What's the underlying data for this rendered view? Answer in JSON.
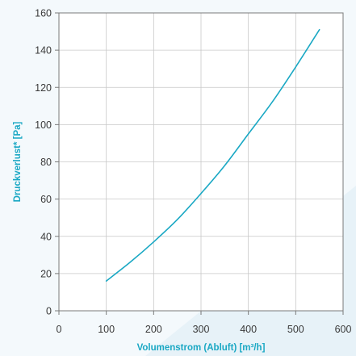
{
  "chart_data": {
    "type": "line",
    "title": "",
    "xlabel": "Volumenstrom (Abluft) [m³/h]",
    "ylabel": "Druckverlust* [Pa]",
    "xlim": [
      0,
      600
    ],
    "ylim": [
      0,
      160
    ],
    "x_ticks": [
      0,
      100,
      200,
      300,
      400,
      500,
      600
    ],
    "y_ticks": [
      0,
      20,
      40,
      60,
      80,
      100,
      120,
      140,
      160
    ],
    "grid": true,
    "legend": "none",
    "series": [
      {
        "color": "#1aa8c4",
        "x": [
          100,
          150,
          200,
          250,
          300,
          350,
          400,
          450,
          500,
          550
        ],
        "y": [
          16,
          26,
          37,
          49,
          63,
          78,
          95,
          112,
          131,
          151
        ]
      }
    ]
  },
  "colors": {
    "background": "#e7f2f8",
    "plot_background": "#ffffff",
    "accent": "#1aa8c4",
    "grid": "#c8c8c8",
    "axis": "#7a7a7a",
    "text": "#3a3a3a"
  }
}
